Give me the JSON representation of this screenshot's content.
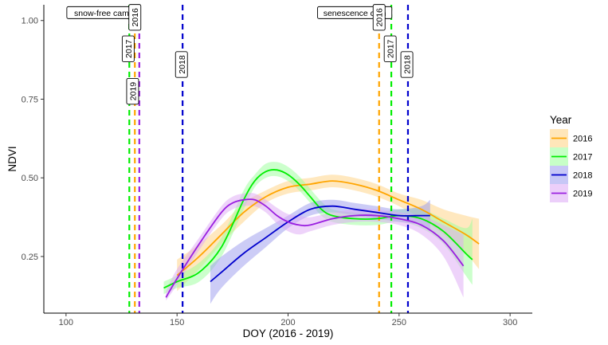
{
  "chart_data": {
    "type": "line",
    "xlabel": "DOY (2016 - 2019)",
    "ylabel": "NDVI",
    "xlim": [
      90,
      310
    ],
    "ylim": [
      0.07,
      1.05
    ],
    "x_ticks": [
      100,
      150,
      200,
      250,
      300
    ],
    "y_ticks": [
      0.25,
      0.5,
      0.75,
      1.0
    ],
    "x_tick_labels": [
      "100",
      "150",
      "200",
      "250",
      "300"
    ],
    "y_tick_labels": [
      "0.25",
      "0.50",
      "0.75",
      "1.00"
    ],
    "grid": false,
    "legend": {
      "title": "Year",
      "position": "right"
    },
    "series": [
      {
        "name": "2016",
        "color": "#FFA500",
        "band_color": "#FFD27F",
        "x": [
          150,
          160,
          170,
          180,
          190,
          200,
          210,
          220,
          230,
          240,
          250,
          260,
          270,
          280,
          286
        ],
        "y": [
          0.19,
          0.25,
          0.32,
          0.39,
          0.44,
          0.47,
          0.48,
          0.49,
          0.48,
          0.46,
          0.43,
          0.4,
          0.36,
          0.32,
          0.29
        ],
        "lo": [
          0.14,
          0.21,
          0.29,
          0.36,
          0.42,
          0.45,
          0.46,
          0.47,
          0.46,
          0.44,
          0.41,
          0.37,
          0.32,
          0.26,
          0.21
        ],
        "hi": [
          0.24,
          0.29,
          0.35,
          0.42,
          0.46,
          0.49,
          0.5,
          0.51,
          0.5,
          0.48,
          0.45,
          0.43,
          0.4,
          0.38,
          0.37
        ]
      },
      {
        "name": "2017",
        "color": "#00EE00",
        "band_color": "#99FF99",
        "x": [
          144,
          150,
          160,
          170,
          180,
          185,
          190,
          195,
          200,
          205,
          210,
          215,
          220,
          230,
          240,
          250,
          260,
          270,
          280,
          283
        ],
        "y": [
          0.15,
          0.17,
          0.2,
          0.28,
          0.43,
          0.49,
          0.52,
          0.525,
          0.51,
          0.48,
          0.44,
          0.4,
          0.38,
          0.37,
          0.37,
          0.38,
          0.37,
          0.33,
          0.26,
          0.24
        ],
        "lo": [
          0.13,
          0.15,
          0.17,
          0.25,
          0.4,
          0.47,
          0.5,
          0.505,
          0.49,
          0.46,
          0.42,
          0.38,
          0.36,
          0.35,
          0.35,
          0.36,
          0.34,
          0.29,
          0.19,
          0.16
        ],
        "hi": [
          0.17,
          0.19,
          0.23,
          0.31,
          0.46,
          0.51,
          0.545,
          0.55,
          0.535,
          0.505,
          0.465,
          0.425,
          0.4,
          0.39,
          0.39,
          0.4,
          0.4,
          0.37,
          0.34,
          0.37
        ]
      },
      {
        "name": "2018",
        "color": "#0000CD",
        "band_color": "#9999EE",
        "x": [
          165,
          170,
          180,
          190,
          200,
          210,
          220,
          230,
          240,
          250,
          260,
          264
        ],
        "y": [
          0.17,
          0.2,
          0.26,
          0.31,
          0.36,
          0.4,
          0.41,
          0.4,
          0.39,
          0.38,
          0.38,
          0.38
        ],
        "lo": [
          0.1,
          0.15,
          0.22,
          0.28,
          0.34,
          0.38,
          0.39,
          0.38,
          0.37,
          0.36,
          0.35,
          0.33
        ],
        "hi": [
          0.22,
          0.25,
          0.3,
          0.34,
          0.38,
          0.42,
          0.43,
          0.42,
          0.41,
          0.4,
          0.41,
          0.43
        ]
      },
      {
        "name": "2019",
        "color": "#9A1FE0",
        "band_color": "#DDA8F5",
        "x": [
          145,
          150,
          160,
          170,
          175,
          180,
          185,
          190,
          195,
          200,
          205,
          210,
          220,
          230,
          240,
          250,
          260,
          270,
          279
        ],
        "y": [
          0.12,
          0.18,
          0.29,
          0.39,
          0.42,
          0.43,
          0.43,
          0.41,
          0.38,
          0.36,
          0.35,
          0.35,
          0.37,
          0.38,
          0.38,
          0.37,
          0.35,
          0.3,
          0.22
        ],
        "lo": [
          0.11,
          0.16,
          0.27,
          0.37,
          0.4,
          0.41,
          0.41,
          0.39,
          0.355,
          0.33,
          0.32,
          0.33,
          0.35,
          0.36,
          0.36,
          0.35,
          0.32,
          0.25,
          0.12
        ],
        "hi": [
          0.14,
          0.21,
          0.31,
          0.41,
          0.44,
          0.45,
          0.45,
          0.43,
          0.405,
          0.385,
          0.38,
          0.375,
          0.39,
          0.4,
          0.4,
          0.39,
          0.38,
          0.35,
          0.32
        ]
      }
    ],
    "vlines": [
      {
        "year": "2016",
        "x": 131,
        "color": "#FFA500"
      },
      {
        "year": "2017",
        "x": 128.5,
        "color": "#00EE00"
      },
      {
        "year": "2018",
        "x": 152.5,
        "color": "#0000CD"
      },
      {
        "year": "2019",
        "x": 133,
        "color": "#9A1FE0"
      },
      {
        "year": "2016",
        "x": 241,
        "color": "#FFA500"
      },
      {
        "year": "2017",
        "x": 246.5,
        "color": "#00EE00"
      },
      {
        "year": "2018",
        "x": 254,
        "color": "#0000CD"
      }
    ],
    "annotations": [
      {
        "text": "snow-free cam",
        "x": 116,
        "y": 1.025,
        "rotate": false
      },
      {
        "text": "2016",
        "x": 131,
        "y": 1.01,
        "rotate": true
      },
      {
        "text": "2017",
        "x": 128,
        "y": 0.91,
        "rotate": true
      },
      {
        "text": "2019",
        "x": 130,
        "y": 0.775,
        "rotate": true
      },
      {
        "text": "2018",
        "x": 152,
        "y": 0.86,
        "rotate": true
      },
      {
        "text": "senescence cam",
        "x": 230,
        "y": 1.025,
        "rotate": false
      },
      {
        "text": "2016",
        "x": 241,
        "y": 1.01,
        "rotate": true
      },
      {
        "text": "2017",
        "x": 246,
        "y": 0.91,
        "rotate": true
      },
      {
        "text": "2018",
        "x": 253.5,
        "y": 0.86,
        "rotate": true
      }
    ]
  }
}
